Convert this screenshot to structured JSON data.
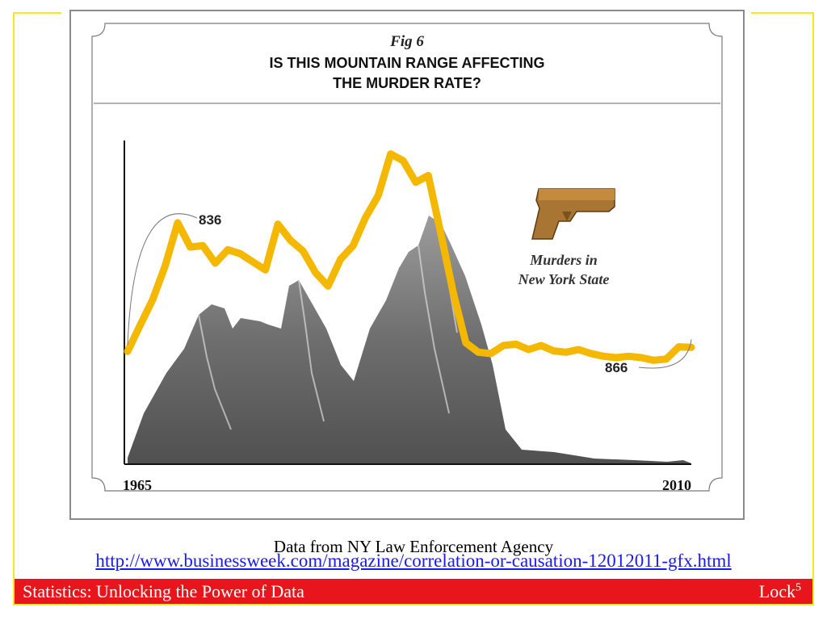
{
  "slide": {
    "source_text": "Data from NY Law Enforcement Agency",
    "source_url": "http://www.businessweek.com/magazine/correlation-or-causation-12012011-gfx.html",
    "footer_title": "Statistics: Unlocking the Power of Data",
    "footer_author": "Lock",
    "footer_page": "5",
    "colors": {
      "footer": "#e8161c",
      "frame": "#f7e71c",
      "line": "#f5b800",
      "link": "#1a1aee"
    }
  },
  "chart_data": {
    "type": "line",
    "fig_label": "Fig 6",
    "title_line1": "IS THIS MOUNTAIN RANGE AFFECTING",
    "title_line2": "THE MURDER RATE?",
    "legend_line1": "Murders in",
    "legend_line2": "New York State",
    "legend_icon": "handgun-icon",
    "background_image": "mountain-range",
    "x_start_label": "1965",
    "x_end_label": "2010",
    "annotations": [
      {
        "text": "836",
        "x": 1970
      },
      {
        "text": "866",
        "x": 2010
      }
    ],
    "xlim": [
      1965,
      2010
    ],
    "ylim": [
      0,
      2400
    ],
    "series": [
      {
        "x": [
          1965,
          1966,
          1967,
          1968,
          1969,
          1970,
          1971,
          1972,
          1973,
          1974,
          1975,
          1976,
          1977,
          1978,
          1979,
          1980,
          1981,
          1982,
          1983,
          1984,
          1985,
          1986,
          1987,
          1988,
          1989,
          1990,
          1991,
          1992,
          1993,
          1994,
          1995,
          1996,
          1997,
          1998,
          1999,
          2000,
          2001,
          2002,
          2003,
          2004,
          2005,
          2006,
          2007,
          2008,
          2009,
          2010
        ],
        "values": [
          836,
          1030,
          1220,
          1470,
          1790,
          1610,
          1620,
          1490,
          1590,
          1560,
          1500,
          1440,
          1780,
          1660,
          1580,
          1420,
          1320,
          1520,
          1620,
          1830,
          1990,
          2300,
          2250,
          2090,
          2140,
          1710,
          1270,
          900,
          830,
          820,
          880,
          890,
          850,
          880,
          840,
          830,
          850,
          820,
          800,
          790,
          800,
          790,
          770,
          780,
          870,
          866
        ]
      }
    ]
  }
}
